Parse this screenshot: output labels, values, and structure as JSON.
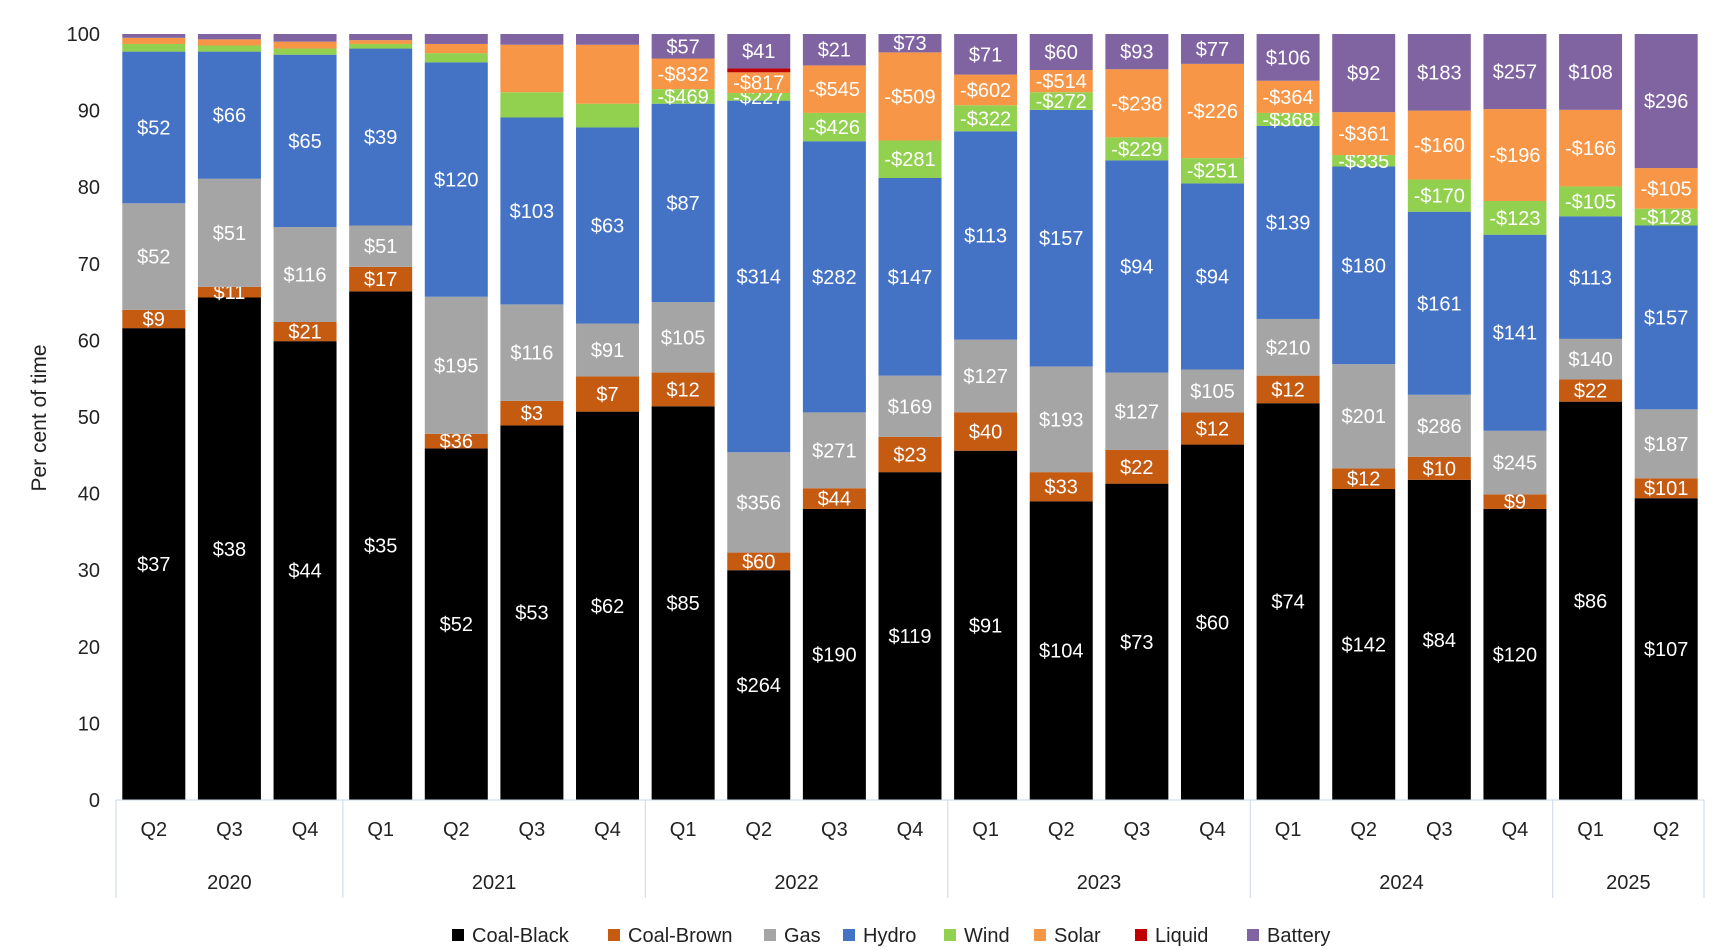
{
  "chart_data": {
    "type": "bar",
    "stacked": true,
    "title": "",
    "xlabel": "",
    "ylabel": "Per cent of time",
    "ylim": [
      0,
      100
    ],
    "yticks": [
      0,
      10,
      20,
      30,
      40,
      50,
      60,
      70,
      80,
      90,
      100
    ],
    "grid": false,
    "legend_position": "bottom",
    "categories": [
      "Q2",
      "Q3",
      "Q4",
      "Q1",
      "Q2",
      "Q3",
      "Q4",
      "Q1",
      "Q2",
      "Q3",
      "Q4",
      "Q1",
      "Q2",
      "Q3",
      "Q4",
      "Q1",
      "Q2",
      "Q3",
      "Q4",
      "Q1",
      "Q2"
    ],
    "groups": [
      {
        "name": "2020",
        "count": 3
      },
      {
        "name": "2021",
        "count": 4
      },
      {
        "name": "2022",
        "count": 4
      },
      {
        "name": "2023",
        "count": 4
      },
      {
        "name": "2024",
        "count": 4
      },
      {
        "name": "2025",
        "count": 2
      }
    ],
    "series": [
      {
        "name": "Coal-Black",
        "color": "#000000",
        "label_color": "#ffffff",
        "values": [
          61.6,
          65.6,
          59.9,
          66.4,
          45.9,
          48.9,
          50.7,
          51.4,
          30.0,
          38.0,
          42.8,
          45.6,
          39.0,
          41.3,
          46.4,
          51.8,
          40.6,
          41.8,
          38.0,
          52.0,
          39.4
        ],
        "labels": [
          "$37",
          "$38",
          "$44",
          "$35",
          "$52",
          "$53",
          "$62",
          "$85",
          "$264",
          "$190",
          "$119",
          "$91",
          "$104",
          "$73",
          "$60",
          "$74",
          "$142",
          "$84",
          "$120",
          "$86",
          "$107"
        ]
      },
      {
        "name": "Coal-Brown",
        "color": "#c55a11",
        "label_color": "#ffffff",
        "values": [
          2.4,
          1.4,
          2.5,
          3.2,
          1.9,
          3.2,
          4.6,
          4.4,
          2.3,
          2.7,
          4.6,
          5.0,
          3.8,
          4.4,
          4.2,
          3.6,
          2.7,
          3.0,
          1.9,
          2.9,
          2.6
        ],
        "labels": [
          "$9",
          "$11",
          "$21",
          "$17",
          "$36",
          "$3",
          "$7",
          "$12",
          "$60",
          "$44",
          "$23",
          "$40",
          "$33",
          "$22",
          "$12",
          "$12",
          "$12",
          "$10",
          "$9",
          "$22",
          "$101"
        ]
      },
      {
        "name": "Gas",
        "color": "#a5a5a5",
        "label_color": "#ffffff",
        "values": [
          13.9,
          14.1,
          12.4,
          5.4,
          17.9,
          12.6,
          6.9,
          9.2,
          13.1,
          9.9,
          8.0,
          9.5,
          13.8,
          10.1,
          5.6,
          7.4,
          13.6,
          8.1,
          8.3,
          5.3,
          9.0
        ],
        "labels": [
          "$52",
          "$51",
          "$116",
          "$51",
          "$195",
          "$116",
          "$91",
          "$105",
          "$356",
          "$271",
          "$169",
          "$127",
          "$193",
          "$127",
          "$105",
          "$210",
          "$201",
          "$286",
          "$245",
          "$140",
          "$187"
        ]
      },
      {
        "name": "Hydro",
        "color": "#4472c4",
        "label_color": "#ffffff",
        "values": [
          19.8,
          16.6,
          22.5,
          23.1,
          30.6,
          24.4,
          25.6,
          25.9,
          45.9,
          35.4,
          25.8,
          27.2,
          33.5,
          27.7,
          24.3,
          25.2,
          25.8,
          23.9,
          25.6,
          16.0,
          24.0
        ],
        "labels": [
          "$52",
          "$66",
          "$65",
          "$39",
          "$120",
          "$103",
          "$63",
          "$87",
          "$314",
          "$282",
          "$147",
          "$113",
          "$157",
          "$94",
          "$94",
          "$139",
          "$180",
          "$161",
          "$141",
          "$113",
          "$157"
        ]
      },
      {
        "name": "Wind",
        "color": "#92d050",
        "label_color": "#ffffff",
        "values": [
          1.0,
          0.8,
          0.8,
          0.6,
          1.2,
          3.3,
          3.1,
          1.9,
          1.0,
          3.7,
          4.9,
          3.4,
          2.3,
          3.0,
          3.3,
          1.7,
          1.5,
          4.2,
          4.4,
          3.9,
          2.2
        ],
        "labels": [
          "",
          "",
          "",
          "",
          "",
          "",
          "",
          "-$469",
          "-$227",
          "-$426",
          "-$281",
          "-$322",
          "-$272",
          "-$229",
          "-$251",
          "-$368",
          "-$335",
          "-$170",
          "-$123",
          "-$105",
          "-$128"
        ]
      },
      {
        "name": "Solar",
        "color": "#f79646",
        "label_color": "#ffffff",
        "values": [
          0.8,
          0.8,
          0.9,
          0.5,
          1.2,
          6.2,
          7.7,
          4.0,
          2.7,
          6.2,
          11.5,
          4.0,
          2.9,
          8.9,
          12.3,
          4.2,
          5.6,
          9.0,
          12.0,
          10.0,
          5.3
        ],
        "labels": [
          "",
          "",
          "",
          "",
          "",
          "",
          "",
          "-$832",
          "-$817",
          "-$545",
          "-$509",
          "-$602",
          "-$514",
          "-$238",
          "-$226",
          "-$364",
          "-$361",
          "-$160",
          "-$196",
          "-$166",
          "-$105"
        ]
      },
      {
        "name": "Liquid",
        "color": "#c00000",
        "label_color": "#ffffff",
        "values": [
          0,
          0,
          0,
          0,
          0,
          0,
          0,
          0,
          0.5,
          0,
          0,
          0,
          0,
          0,
          0,
          0,
          0,
          0,
          0,
          0,
          0
        ],
        "labels": [
          "",
          "",
          "",
          "",
          "",
          "",
          "",
          "",
          "",
          "",
          "",
          "",
          "",
          "",
          "",
          "",
          "",
          "",
          "",
          "",
          ""
        ]
      },
      {
        "name": "Battery",
        "color": "#8064a2",
        "label_color": "#ffffff",
        "values": [
          0.5,
          0.7,
          1.0,
          0.8,
          1.3,
          1.4,
          1.4,
          3.2,
          4.5,
          4.1,
          2.4,
          5.3,
          4.7,
          4.6,
          3.9,
          6.1,
          10.2,
          10.0,
          9.8,
          9.9,
          17.5
        ],
        "labels": [
          "",
          "",
          "",
          "",
          "",
          "",
          "",
          "$57",
          "$41",
          "$21",
          "$73",
          "$71",
          "$60",
          "$93",
          "$77",
          "$106",
          "$92",
          "$183",
          "$257",
          "$108",
          "$296"
        ]
      }
    ]
  }
}
